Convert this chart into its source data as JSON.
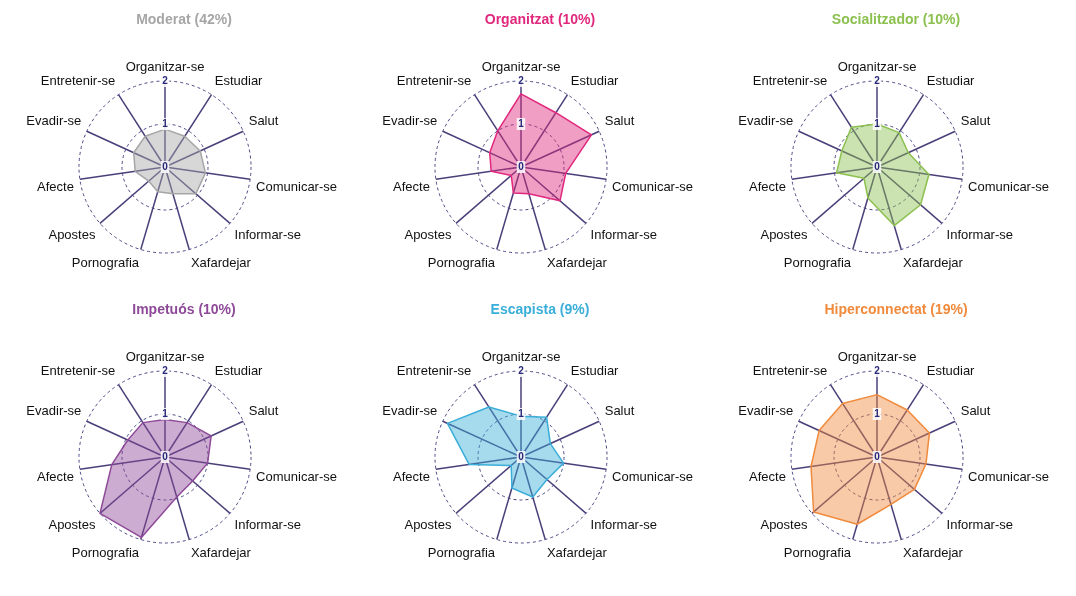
{
  "chart_data": [
    {
      "type": "radar",
      "title": "Moderat (42%)",
      "categories": [
        "Organitzar-se",
        "Estudiar",
        "Salut",
        "Comunicar-se",
        "Informar-se",
        "Xafardejar",
        "Pornografia",
        "Apostes",
        "Afecte",
        "Evadir-se",
        "Entretenir-se"
      ],
      "series": [
        {
          "color": "#a6a6a6",
          "values": [
            0.88,
            0.85,
            0.9,
            0.95,
            0.95,
            0.65,
            0.6,
            0.5,
            0.7,
            0.8,
            0.85
          ]
        }
      ],
      "ylim": [
        0,
        2
      ],
      "yticks": [
        0,
        1,
        2
      ],
      "grid": true,
      "marker": "none"
    },
    {
      "type": "radar",
      "title": "Organitzat (10%)",
      "categories": [
        "Organitzar-se",
        "Estudiar",
        "Salut",
        "Comunicar-se",
        "Informar-se",
        "Xafardejar",
        "Pornografia",
        "Apostes",
        "Afecte",
        "Evadir-se",
        "Entretenir-se"
      ],
      "series": [
        {
          "color": "#e0287d",
          "values": [
            1.7,
            1.5,
            1.8,
            1.05,
            1.2,
            0.65,
            0.63,
            0.3,
            0.7,
            0.8,
            1.0
          ]
        }
      ],
      "ylim": [
        0,
        2
      ],
      "yticks": [
        0,
        1,
        2
      ],
      "grid": true,
      "marker": "none"
    },
    {
      "type": "radar",
      "title": "Socialitzador (10%)",
      "categories": [
        "Organitzar-se",
        "Estudiar",
        "Salut",
        "Comunicar-se",
        "Informar-se",
        "Xafardejar",
        "Pornografia",
        "Apostes",
        "Afecte",
        "Evadir-se",
        "Entretenir-se"
      ],
      "series": [
        {
          "color": "#8cc04f",
          "values": [
            1.0,
            0.95,
            0.8,
            1.22,
            1.34,
            1.42,
            0.75,
            0.4,
            0.95,
            0.9,
            1.1
          ]
        }
      ],
      "ylim": [
        0,
        2
      ],
      "yticks": [
        0,
        1,
        2
      ],
      "grid": true,
      "marker": "none"
    },
    {
      "type": "radar",
      "title": "Impetuós (10%)",
      "categories": [
        "Organitzar-se",
        "Estudiar",
        "Salut",
        "Comunicar-se",
        "Informar-se",
        "Xafardejar",
        "Pornografia",
        "Apostes",
        "Afecte",
        "Evadir-se",
        "Entretenir-se"
      ],
      "series": [
        {
          "color": "#8e4a98",
          "values": [
            0.87,
            0.95,
            1.18,
            1.0,
            0.85,
            0.97,
            1.95,
            2.0,
            1.25,
            0.95,
            0.95
          ]
        }
      ],
      "ylim": [
        0,
        2
      ],
      "yticks": [
        0,
        1,
        2
      ],
      "grid": true,
      "marker": "none"
    },
    {
      "type": "radar",
      "title": "Escapista (9%)",
      "categories": [
        "Organitzar-se",
        "Estudiar",
        "Salut",
        "Comunicar-se",
        "Informar-se",
        "Xafardejar",
        "Pornografia",
        "Apostes",
        "Afecte",
        "Evadir-se",
        "Entretenir-se"
      ],
      "series": [
        {
          "color": "#3aaed8",
          "values": [
            0.95,
            1.1,
            0.75,
            1.0,
            0.8,
            0.97,
            0.75,
            0.3,
            1.22,
            1.88,
            1.38
          ]
        }
      ],
      "ylim": [
        0,
        2
      ],
      "yticks": [
        0,
        1,
        2
      ],
      "grid": true,
      "marker": "none"
    },
    {
      "type": "radar",
      "title": "Hiperconnectat (19%)",
      "categories": [
        "Organitzar-se",
        "Estudiar",
        "Salut",
        "Comunicar-se",
        "Informar-se",
        "Xafardejar",
        "Pornografia",
        "Apostes",
        "Afecte",
        "Evadir-se",
        "Entretenir-se"
      ],
      "series": [
        {
          "color": "#f08a3c",
          "values": [
            1.45,
            1.3,
            1.34,
            1.15,
            1.15,
            1.15,
            1.63,
            1.95,
            1.55,
            1.48,
            1.48
          ]
        }
      ],
      "ylim": [
        0,
        2
      ],
      "yticks": [
        0,
        1,
        2
      ],
      "grid": true,
      "marker": "none"
    }
  ]
}
